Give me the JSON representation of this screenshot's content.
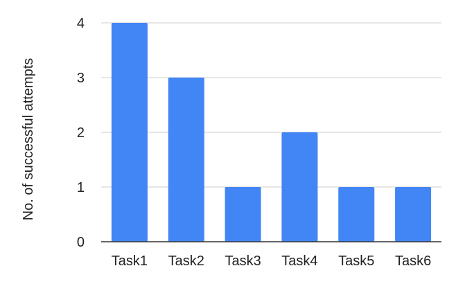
{
  "chart_data": {
    "type": "bar",
    "title": "",
    "xlabel": "",
    "ylabel": "No. of successful attempts",
    "categories": [
      "Task1",
      "Task2",
      "Task3",
      "Task4",
      "Task5",
      "Task6"
    ],
    "values": [
      4,
      3,
      1,
      2,
      1,
      1
    ],
    "ylim": [
      0,
      4
    ],
    "yticks": [
      "0",
      "1",
      "2",
      "3",
      "4"
    ],
    "grid": true,
    "legend": "none"
  },
  "colors": {
    "bar": "#4285f4",
    "grid": "#cccccc",
    "axis": "#333333"
  }
}
